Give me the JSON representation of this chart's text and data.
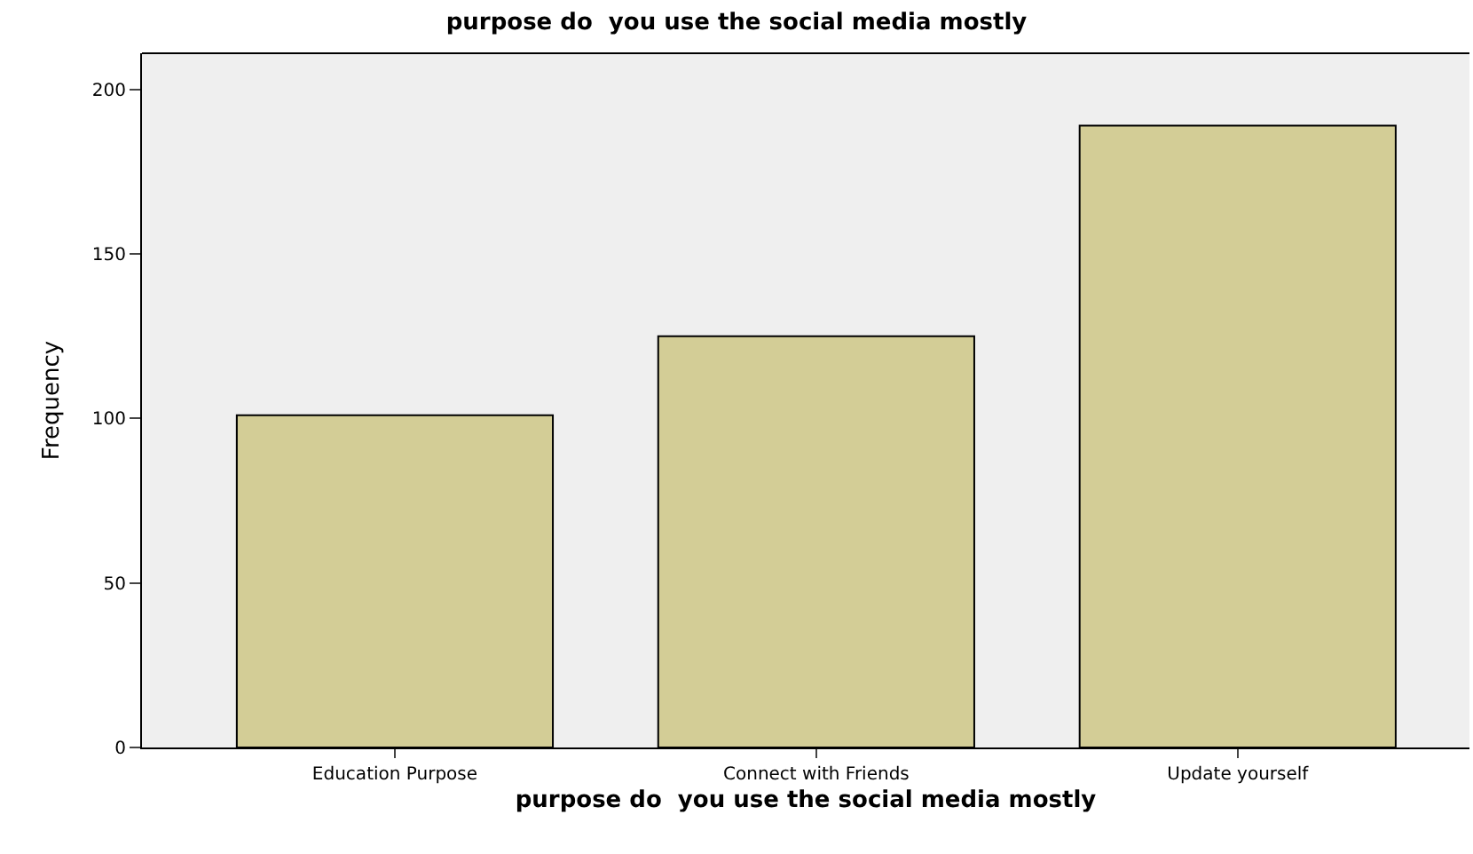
{
  "chart_data": {
    "type": "bar",
    "title": "purpose do  you use the social media mostly",
    "xlabel": "purpose do  you use the social media mostly",
    "ylabel": "Frequency",
    "categories": [
      "Education Purpose",
      "Connect with Friends",
      "Update yourself"
    ],
    "values": [
      101,
      125,
      189
    ],
    "color": "#d3cd96",
    "ylim": [
      0,
      211
    ],
    "yticks": [
      0,
      50,
      100,
      150,
      200
    ],
    "grid": false
  }
}
